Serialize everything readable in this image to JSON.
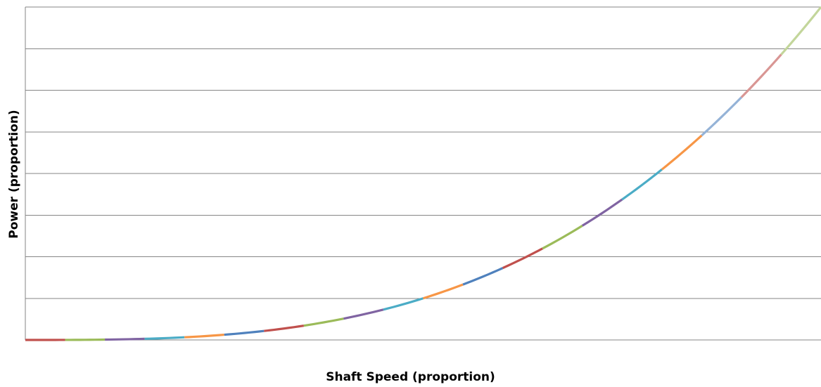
{
  "chart_data": {
    "type": "line",
    "title": "",
    "xlabel": "Shaft Speed (proportion)",
    "ylabel": "Power (proportion)",
    "xlim": [
      0,
      1
    ],
    "ylim": [
      0,
      1
    ],
    "grid": true,
    "gridline_count": 8,
    "legend": "none",
    "x": [
      0,
      0.05,
      0.1,
      0.15,
      0.2,
      0.25,
      0.3,
      0.35,
      0.4,
      0.45,
      0.5,
      0.55,
      0.6,
      0.65,
      0.7,
      0.75,
      0.8,
      0.85,
      0.9,
      0.95,
      1.0
    ],
    "series": [
      {
        "values": [
          0,
          0.0001,
          0.001,
          0.003,
          0.008,
          0.016,
          0.027,
          0.043,
          0.064,
          0.091,
          0.125,
          0.166,
          0.216,
          0.275,
          0.343,
          0.422,
          0.512,
          0.614,
          0.729,
          0.857,
          1.0
        ]
      }
    ],
    "segment_colors": [
      "#C0504D",
      "#9BBB59",
      "#8064A2",
      "#4BACC6",
      "#F79646",
      "#4F81BD",
      "#C0504D",
      "#9BBB59",
      "#8064A2",
      "#4BACC6",
      "#F79646",
      "#4F81BD",
      "#C0504D",
      "#9BBB59",
      "#8064A2",
      "#4BACC6",
      "#F79646",
      "#95B3D7",
      "#D99694",
      "#C3D69B"
    ],
    "gridline_color": "#868686"
  }
}
